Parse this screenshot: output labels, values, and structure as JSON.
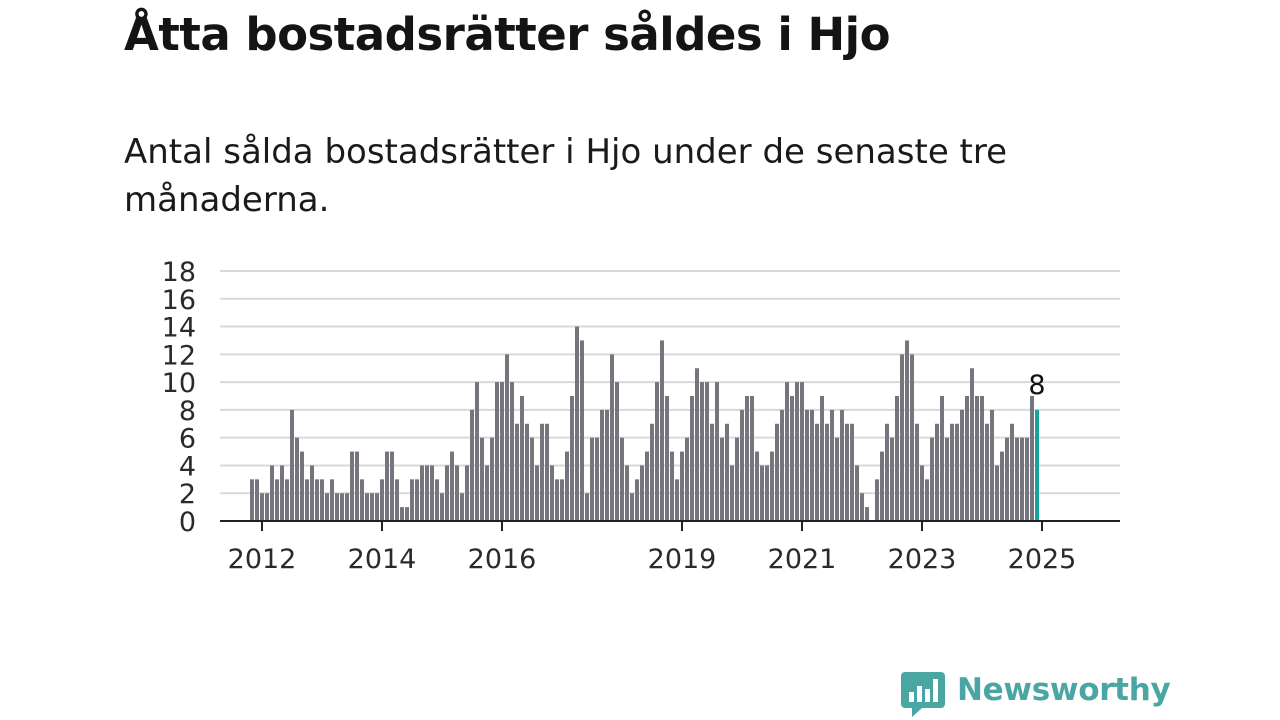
{
  "header": {
    "title": "Åtta bostadsrätter såldes i Hjo",
    "subtitle": "Antal sålda bostadsrätter i Hjo under de senaste tre månaderna."
  },
  "brand": {
    "name": "Newsworthy",
    "logo_icon": "bar-chart-speech-bubble-icon",
    "color": "#4aa6a2"
  },
  "chart_data": {
    "type": "bar",
    "start": "2011-11",
    "frequency": "monthly",
    "values": [
      3,
      3,
      2,
      2,
      4,
      3,
      4,
      3,
      8,
      6,
      5,
      3,
      4,
      3,
      3,
      2,
      3,
      2,
      2,
      2,
      5,
      5,
      3,
      2,
      2,
      2,
      3,
      5,
      5,
      3,
      1,
      1,
      3,
      3,
      4,
      4,
      4,
      3,
      2,
      4,
      5,
      4,
      2,
      4,
      8,
      10,
      6,
      4,
      6,
      10,
      10,
      12,
      10,
      7,
      9,
      7,
      6,
      4,
      7,
      7,
      4,
      3,
      3,
      5,
      9,
      14,
      13,
      2,
      6,
      6,
      8,
      8,
      12,
      10,
      6,
      4,
      2,
      3,
      4,
      5,
      7,
      10,
      13,
      9,
      5,
      3,
      5,
      6,
      9,
      11,
      10,
      10,
      7,
      10,
      6,
      7,
      4,
      6,
      8,
      9,
      9,
      5,
      4,
      4,
      5,
      7,
      8,
      10,
      9,
      10,
      10,
      8,
      8,
      7,
      9,
      7,
      8,
      6,
      8,
      7,
      7,
      4,
      2,
      1,
      0,
      3,
      5,
      7,
      6,
      9,
      12,
      13,
      12,
      7,
      4,
      3,
      6,
      7,
      9,
      6,
      7,
      7,
      8,
      9,
      11,
      9,
      9,
      7,
      8,
      4,
      5,
      6,
      7,
      6,
      6,
      6,
      9,
      8
    ],
    "x_ticks": [
      "2012",
      "2014",
      "2016",
      "2019",
      "2021",
      "2023",
      "2025"
    ],
    "x_tick_dates": [
      "2012-01",
      "2014-01",
      "2016-01",
      "2019-01",
      "2021-01",
      "2023-01",
      "2025-01"
    ],
    "y_ticks": [
      "0",
      "2",
      "4",
      "6",
      "8",
      "10",
      "12",
      "14",
      "16",
      "18"
    ],
    "ylim": [
      0,
      18
    ],
    "grid": true,
    "colors": {
      "bars": "#76757d",
      "highlight": "#16a39b",
      "grid": "#d9d9d9",
      "axis": "#222222"
    },
    "highlight_label": "8"
  }
}
